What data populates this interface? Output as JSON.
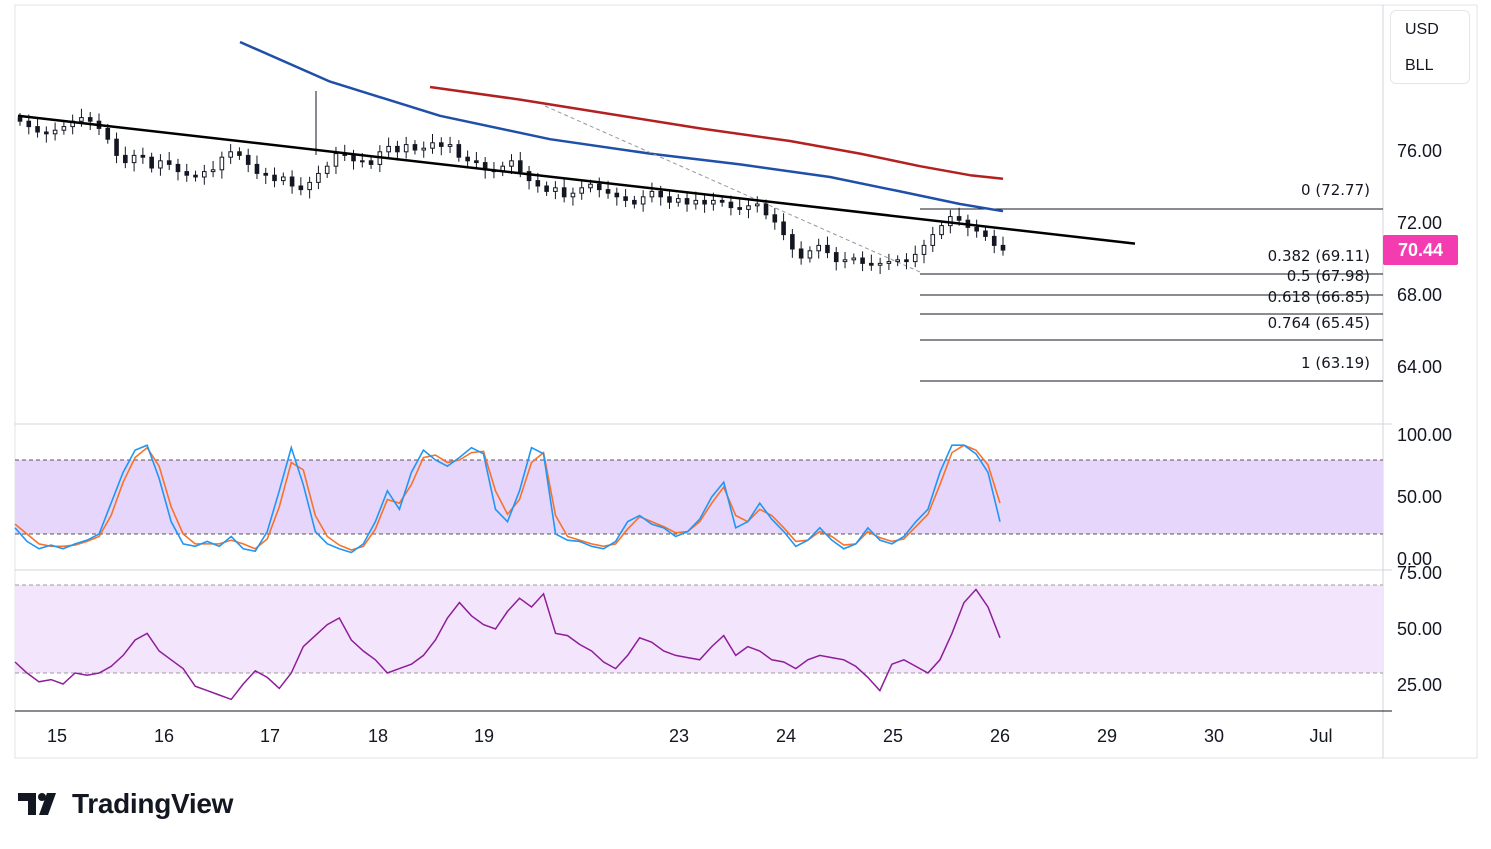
{
  "currency": {
    "quote": "USD",
    "symbol": "BLL"
  },
  "last_price_label": "70.44",
  "colors": {
    "up": "#131722",
    "down": "#131722",
    "sma_fast": "#1f4fa8",
    "sma_slow": "#b22020",
    "trendline": "#000000",
    "stoch_k": "#2196f3",
    "stoch_d": "#f7722a",
    "stoch_band": "#e6d6fb",
    "rsi_line": "#8e1d99",
    "rsi_band": "#f3e6fc",
    "price_tag": "#f23cb0"
  },
  "brand": {
    "name": "TradingView"
  },
  "chart_data": {
    "type": "candlestick",
    "price_axis": {
      "ticks": [
        "76.00",
        "72.00",
        "68.00",
        "64.00"
      ],
      "ylim": [
        61.5,
        78.5
      ]
    },
    "x_ticks": [
      "15",
      "16",
      "17",
      "18",
      "19",
      "23",
      "24",
      "25",
      "26",
      "29",
      "30",
      "Jul"
    ],
    "close_series": [
      77.6,
      77.3,
      77.0,
      76.9,
      77.1,
      77.3,
      77.6,
      77.8,
      77.6,
      77.2,
      76.6,
      75.7,
      75.3,
      75.7,
      75.6,
      75.0,
      75.4,
      75.2,
      74.8,
      74.6,
      74.5,
      74.8,
      74.9,
      75.6,
      75.9,
      75.7,
      75.2,
      74.7,
      74.6,
      74.3,
      74.5,
      74.0,
      73.8,
      74.2,
      74.7,
      75.1,
      75.8,
      75.7,
      75.4,
      75.4,
      75.2,
      75.9,
      76.2,
      75.9,
      76.3,
      76.0,
      76.1,
      76.4,
      76.2,
      76.3,
      75.6,
      75.4,
      75.3,
      74.9,
      74.8,
      75.1,
      75.4,
      74.8,
      74.3,
      74.0,
      73.7,
      73.9,
      73.4,
      73.6,
      73.9,
      74.1,
      73.8,
      73.6,
      73.4,
      73.2,
      73.0,
      73.4,
      73.7,
      73.4,
      73.1,
      73.3,
      73.0,
      73.2,
      73.0,
      73.2,
      73.1,
      72.8,
      72.7,
      72.9,
      73.0,
      72.4,
      72.0,
      71.3,
      70.5,
      70.0,
      70.4,
      70.7,
      70.3,
      69.8,
      69.9,
      70.0,
      69.7,
      69.6,
      69.7,
      69.8,
      69.9,
      69.8,
      70.2,
      70.7,
      71.3,
      71.8,
      72.3,
      72.1,
      71.7,
      71.5,
      71.2,
      70.7,
      70.44
    ],
    "trendline": [
      {
        "x": 0,
        "price": 77.9
      },
      {
        "x": 1,
        "price": 70.8
      }
    ],
    "sma_fast": {
      "values": [
        82,
        79.8,
        77.9,
        76.6,
        75.8,
        75.2,
        74.5,
        73.7,
        73.0,
        72.6
      ]
    },
    "sma_slow": {
      "values": [
        79.5,
        78.8,
        78.0,
        77.2,
        76.5,
        75.8,
        75.1,
        74.6,
        74.4
      ]
    },
    "fibonacci": [
      {
        "label": "0 (72.77)",
        "price": 72.77
      },
      {
        "label": "0.382 (69.11)",
        "price": 69.11
      },
      {
        "label": "0.5 (67.98)",
        "price": 67.98
      },
      {
        "label": "0.618 (66.85)",
        "price": 66.85
      },
      {
        "label": "0.764 (65.45)",
        "price": 65.45
      },
      {
        "label": "1 (63.19)",
        "price": 63.19
      }
    ],
    "stochastic": {
      "ticks": [
        "100.00",
        "50.00",
        "0.00"
      ],
      "ylim": [
        0,
        100
      ],
      "band": [
        20,
        80
      ],
      "k_values": [
        25,
        14,
        8,
        11,
        8,
        12,
        15,
        20,
        45,
        70,
        88,
        92,
        65,
        30,
        12,
        10,
        14,
        10,
        18,
        8,
        6,
        22,
        55,
        90,
        60,
        22,
        12,
        8,
        5,
        12,
        30,
        55,
        40,
        70,
        88,
        80,
        75,
        82,
        90,
        85,
        40,
        30,
        55,
        90,
        85,
        20,
        15,
        14,
        10,
        8,
        14,
        30,
        35,
        28,
        25,
        18,
        22,
        32,
        50,
        62,
        25,
        30,
        45,
        32,
        22,
        10,
        15,
        25,
        15,
        8,
        12,
        25,
        15,
        12,
        18,
        30,
        40,
        70,
        92,
        92,
        85,
        70,
        30
      ],
      "d_values": [
        28,
        20,
        12,
        10,
        10,
        11,
        14,
        18,
        35,
        62,
        82,
        90,
        75,
        42,
        20,
        12,
        12,
        12,
        15,
        12,
        8,
        16,
        42,
        78,
        72,
        35,
        18,
        11,
        7,
        10,
        24,
        48,
        45,
        60,
        82,
        84,
        78,
        80,
        86,
        87,
        55,
        36,
        48,
        78,
        86,
        35,
        18,
        15,
        12,
        10,
        12,
        24,
        34,
        30,
        26,
        21,
        22,
        30,
        45,
        58,
        35,
        30,
        40,
        35,
        25,
        14,
        15,
        22,
        18,
        11,
        12,
        22,
        17,
        14,
        16,
        26,
        36,
        60,
        86,
        92,
        88,
        76,
        45
      ]
    },
    "rsi": {
      "ticks": [
        "75.00",
        "50.00",
        "25.00"
      ],
      "ylim": [
        15,
        80
      ],
      "band": [
        30,
        70
      ],
      "values": [
        35,
        30,
        26,
        27,
        25,
        30,
        29,
        30,
        33,
        38,
        45,
        48,
        40,
        36,
        32,
        24,
        22,
        20,
        18,
        25,
        31,
        28,
        23,
        30,
        42,
        47,
        52,
        55,
        45,
        40,
        36,
        30,
        32,
        34,
        38,
        45,
        55,
        62,
        56,
        52,
        50,
        58,
        64,
        60,
        66,
        48,
        47,
        43,
        40,
        35,
        32,
        38,
        46,
        44,
        40,
        38,
        37,
        36,
        42,
        47,
        38,
        42,
        40,
        36,
        35,
        32,
        36,
        38,
        37,
        36,
        33,
        28,
        22,
        34,
        36,
        33,
        30,
        36,
        48,
        62,
        68,
        60,
        46
      ]
    }
  }
}
